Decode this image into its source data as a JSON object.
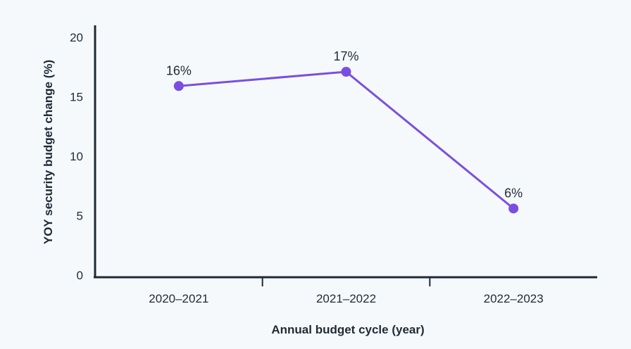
{
  "chart_data": {
    "type": "line",
    "title": "",
    "xlabel": "Annual budget cycle (year)",
    "ylabel": "YOY security budget change (%)",
    "categories": [
      "2020–2021",
      "2021–2022",
      "2022–2023"
    ],
    "series": [
      {
        "values": [
          15.9,
          17.1,
          5.6
        ],
        "labels": [
          "16%",
          "17%",
          "6%"
        ],
        "color": "#7a4fe0"
      }
    ],
    "ylim": [
      0,
      20
    ],
    "yticks": [
      "0",
      "5",
      "10",
      "15",
      "20"
    ],
    "grid": false,
    "legend": "none"
  }
}
